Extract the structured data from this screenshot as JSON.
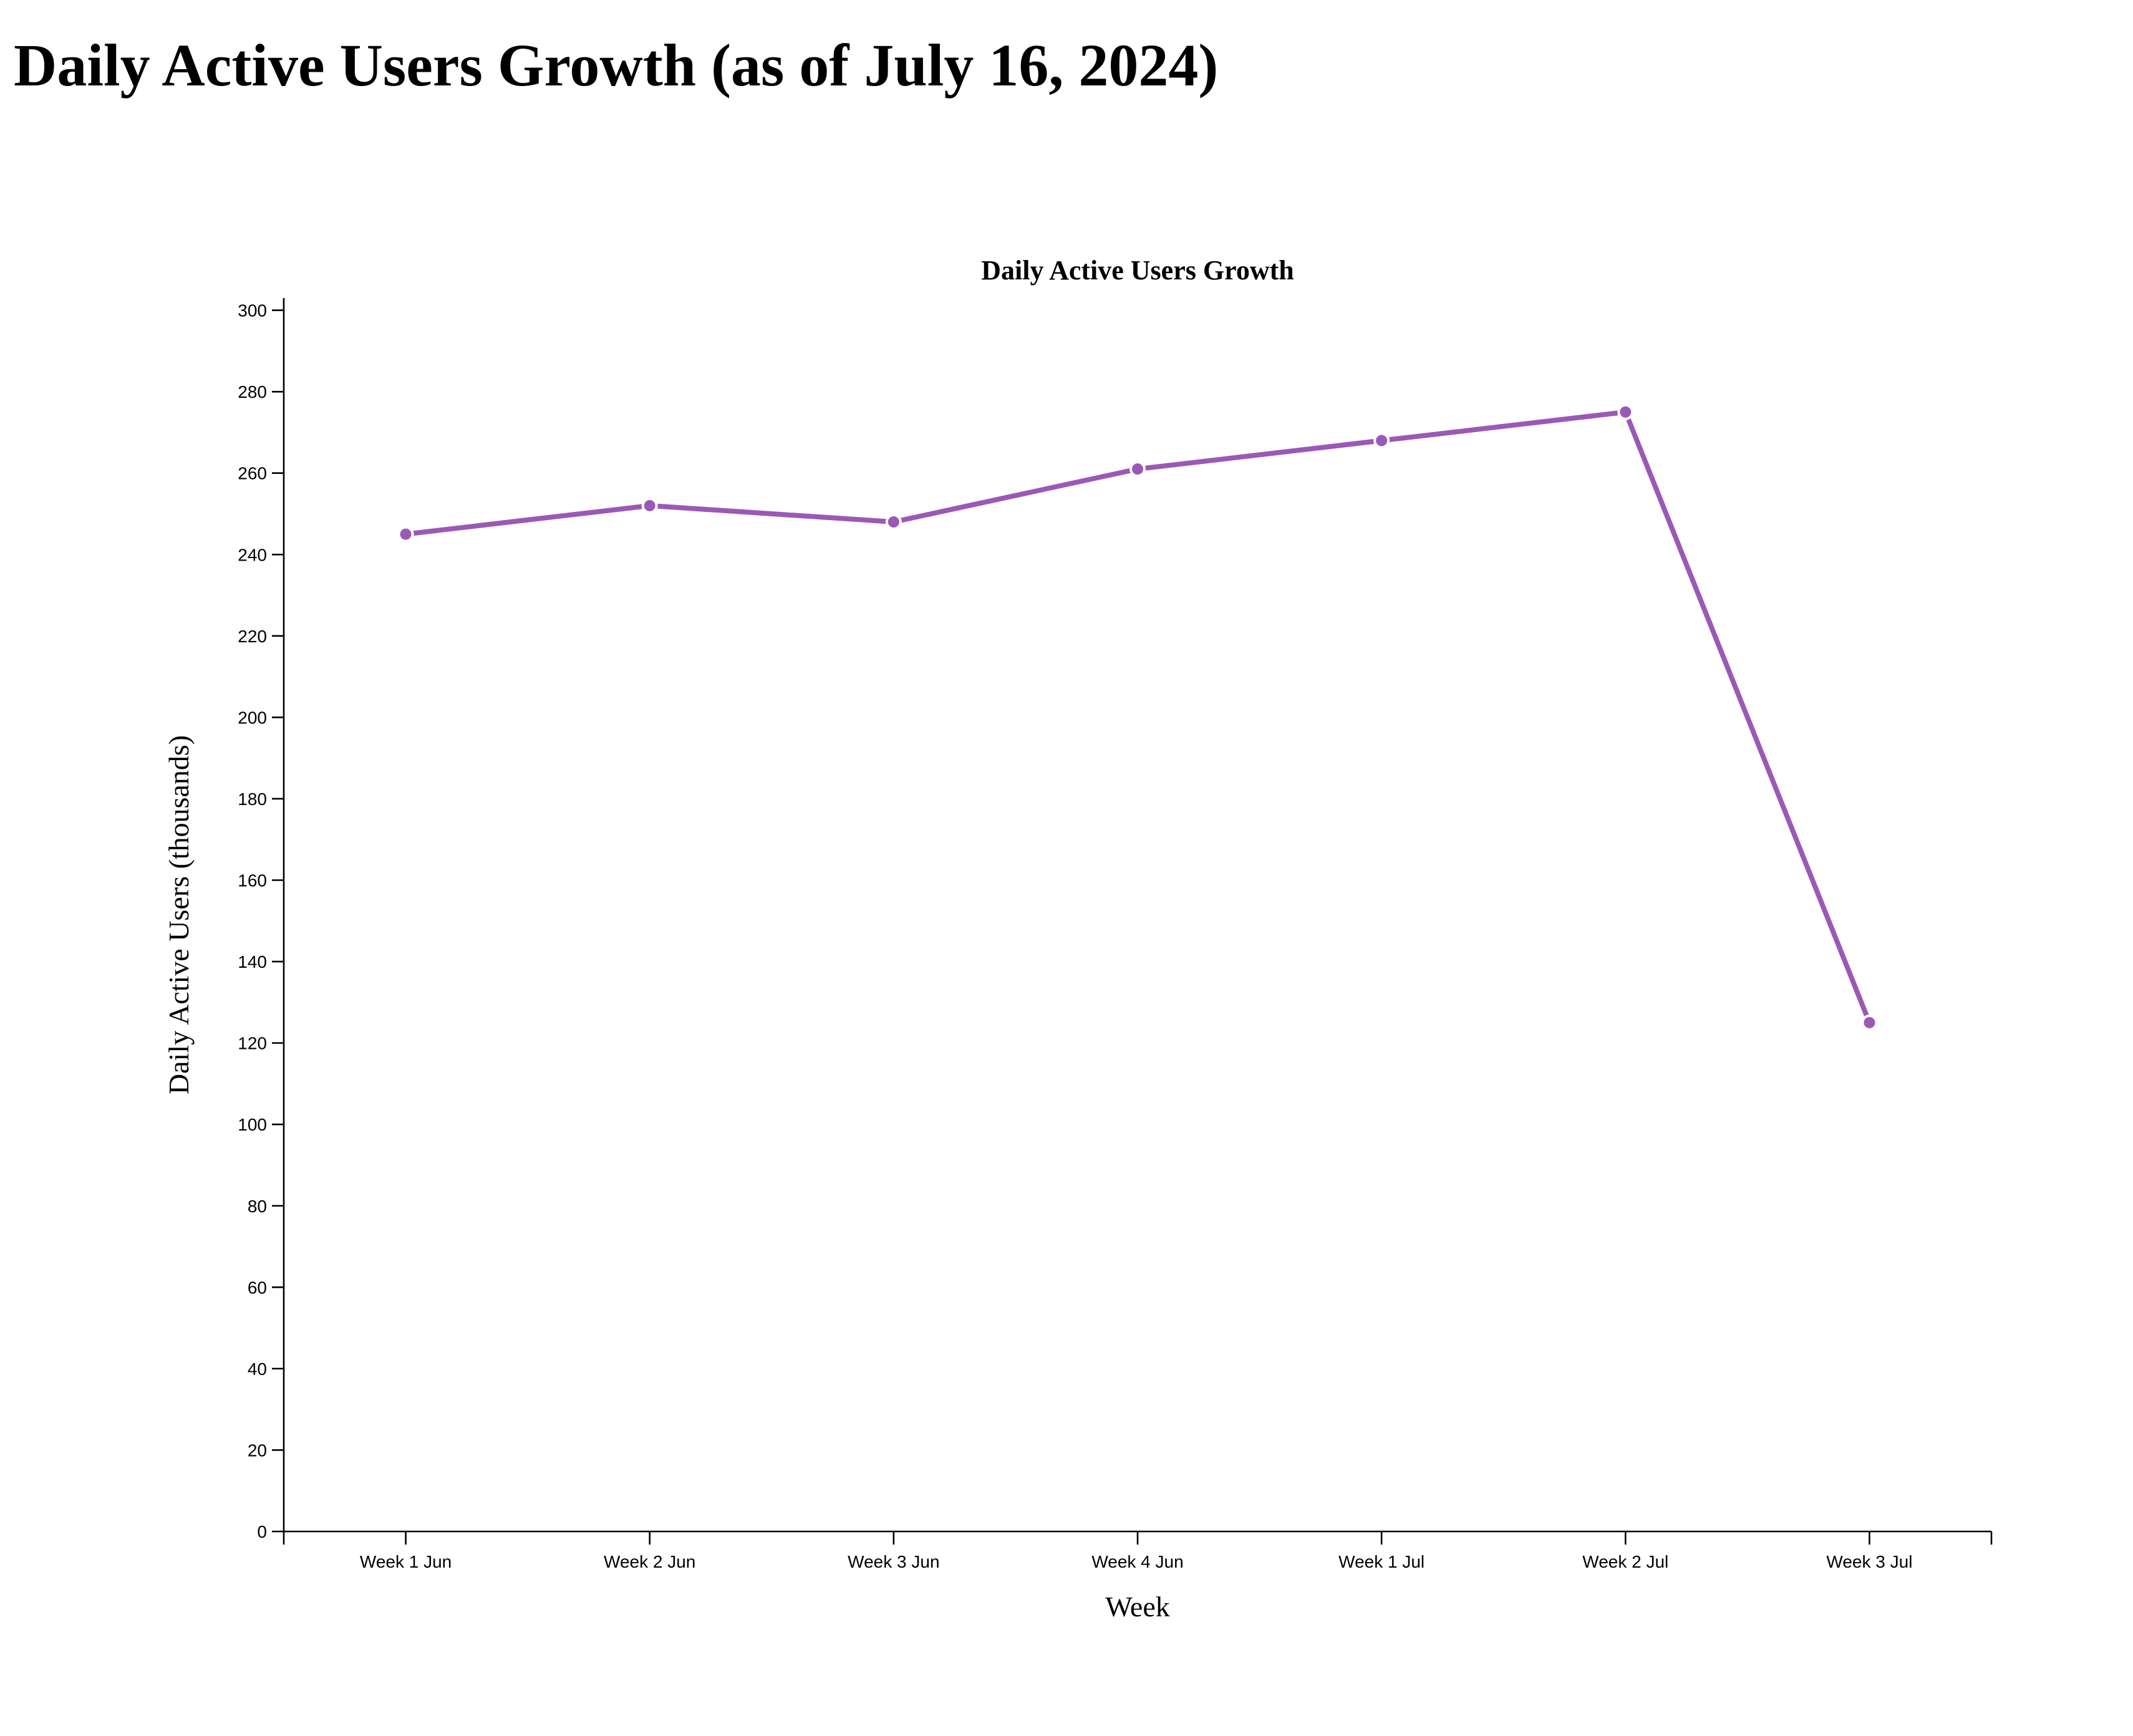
{
  "page": {
    "heading": "Daily Active Users Growth (as of July 16, 2024)"
  },
  "chart_data": {
    "type": "line",
    "title": "Daily Active Users Growth",
    "xlabel": "Week",
    "ylabel": "Daily Active Users (thousands)",
    "categories": [
      "Week 1 Jun",
      "Week 2 Jun",
      "Week 3 Jun",
      "Week 4 Jun",
      "Week 1 Jul",
      "Week 2 Jul",
      "Week 3 Jul"
    ],
    "values": [
      245,
      252,
      248,
      261,
      268,
      275,
      125
    ],
    "ylim": [
      0,
      303
    ],
    "yticks": [
      0,
      20,
      40,
      60,
      80,
      100,
      120,
      140,
      160,
      180,
      200,
      220,
      240,
      260,
      280,
      300
    ],
    "grid": false,
    "legend": "none",
    "color": "#9b59b6"
  }
}
